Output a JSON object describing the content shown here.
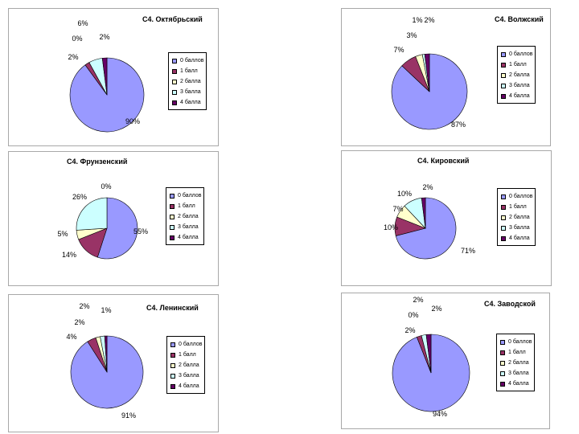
{
  "colors": [
    "#9999ff",
    "#993366",
    "#ffffcc",
    "#ccffff",
    "#660066"
  ],
  "legend": [
    "0 баллов",
    "1 балл",
    "2 балла",
    "3 балла",
    "4 балла"
  ],
  "chart_data": [
    {
      "type": "pie",
      "title": "C4. Октябрьский",
      "categories": [
        "0 баллов",
        "1 балл",
        "2 балла",
        "3 балла",
        "4 балла"
      ],
      "values": [
        90,
        2,
        0,
        6,
        2
      ],
      "labels": [
        "90%",
        "2%",
        "0%",
        "6%",
        "2%"
      ]
    },
    {
      "type": "pie",
      "title": "C4. Волжский",
      "categories": [
        "0 баллов",
        "1 балл",
        "2 балла",
        "3 балла",
        "4 балла"
      ],
      "values": [
        87,
        7,
        3,
        1,
        2
      ],
      "labels": [
        "87%",
        "7%",
        "3%",
        "1%",
        "2%"
      ]
    },
    {
      "type": "pie",
      "title": "C4. Фрунзенский",
      "categories": [
        "0 баллов",
        "1 балл",
        "2 балла",
        "3 балла",
        "4 балла"
      ],
      "values": [
        55,
        14,
        5,
        26,
        0
      ],
      "labels": [
        "55%",
        "14%",
        "5%",
        "26%",
        "0%"
      ]
    },
    {
      "type": "pie",
      "title": "C4. Кировский",
      "categories": [
        "0 баллов",
        "1 балл",
        "2 балла",
        "3 балла",
        "4 балла"
      ],
      "values": [
        71,
        10,
        7,
        10,
        2
      ],
      "labels": [
        "71%",
        "10%",
        "7%",
        "10%",
        "2%"
      ]
    },
    {
      "type": "pie",
      "title": "C4. Ленинский",
      "categories": [
        "0 баллов",
        "1 балл",
        "2 балла",
        "3 балла",
        "4 балла"
      ],
      "values": [
        91,
        4,
        2,
        2,
        1
      ],
      "labels": [
        "91%",
        "4%",
        "2%",
        "2%",
        "1%"
      ]
    },
    {
      "type": "pie",
      "title": "C4. Заводской",
      "categories": [
        "0 баллов",
        "1 балл",
        "2 балла",
        "3 балла",
        "4 балла"
      ],
      "values": [
        94,
        2,
        0,
        2,
        2
      ],
      "labels": [
        "94%",
        "2%",
        "0%",
        "2%",
        "2%"
      ]
    }
  ]
}
